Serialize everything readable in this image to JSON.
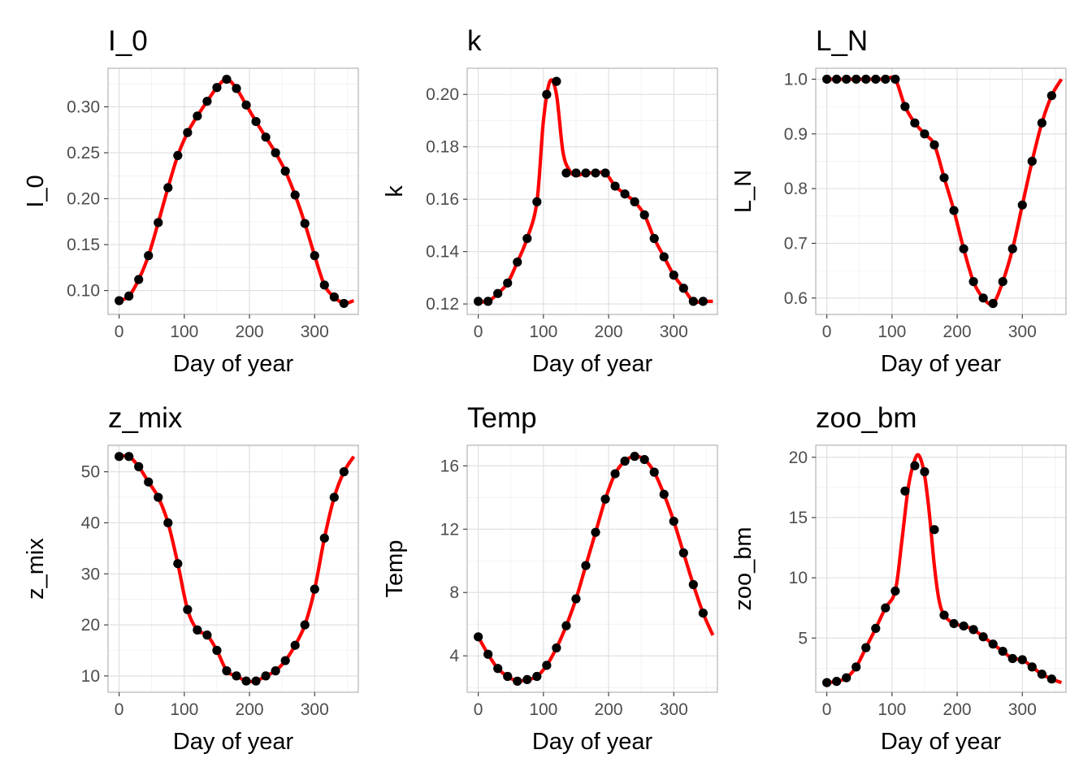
{
  "figure": {
    "colors": {
      "line": "#ff0000",
      "points": "#000000",
      "grid": "#dedede",
      "panel_border": "#b3b3b3",
      "tick_text": "#4d4d4d"
    }
  },
  "chart_data": [
    {
      "type": "line",
      "title": "I_0",
      "xlabel": "Day of year",
      "ylabel": "I_0",
      "xlim": [
        -17,
        367
      ],
      "ylim": [
        0.074,
        0.342
      ],
      "xticks": [
        0,
        100,
        200,
        300
      ],
      "yticks": [
        0.1,
        0.15,
        0.2,
        0.25,
        0.3
      ],
      "ytick_labels": [
        "0.10",
        "0.15",
        "0.20",
        "0.25",
        "0.30"
      ],
      "grid": true,
      "points": {
        "x": [
          0,
          15,
          30,
          45,
          60,
          75,
          90,
          105,
          120,
          135,
          150,
          165,
          180,
          195,
          210,
          225,
          240,
          255,
          270,
          285,
          300,
          315,
          330,
          345
        ],
        "y": [
          0.089,
          0.094,
          0.112,
          0.138,
          0.174,
          0.212,
          0.247,
          0.272,
          0.29,
          0.306,
          0.321,
          0.33,
          0.32,
          0.302,
          0.284,
          0.267,
          0.25,
          0.23,
          0.204,
          0.173,
          0.138,
          0.106,
          0.093,
          0.086
        ]
      },
      "curve": {
        "x": [
          345,
          360
        ],
        "y": [
          0.086,
          0.089
        ]
      }
    },
    {
      "type": "line",
      "title": "k",
      "xlabel": "Day of year",
      "ylabel": "k",
      "xlim": [
        -17,
        367
      ],
      "ylim": [
        0.116,
        0.21
      ],
      "xticks": [
        0,
        100,
        200,
        300
      ],
      "yticks": [
        0.12,
        0.14,
        0.16,
        0.18,
        0.2
      ],
      "ytick_labels": [
        "0.12",
        "0.14",
        "0.16",
        "0.18",
        "0.20"
      ],
      "grid": true,
      "points": {
        "x": [
          0,
          15,
          30,
          45,
          60,
          75,
          90,
          105,
          120,
          135,
          150,
          165,
          180,
          195,
          210,
          225,
          240,
          255,
          270,
          285,
          300,
          315,
          330,
          345
        ],
        "y": [
          0.121,
          0.121,
          0.124,
          0.128,
          0.136,
          0.145,
          0.159,
          0.2,
          0.205,
          0.17,
          0.17,
          0.17,
          0.17,
          0.17,
          0.165,
          0.162,
          0.159,
          0.154,
          0.145,
          0.138,
          0.131,
          0.126,
          0.121,
          0.121
        ]
      },
      "curve": {
        "x": [
          0,
          15,
          30,
          45,
          60,
          75,
          90,
          100,
          110,
          120,
          130,
          140,
          150,
          165,
          180,
          195,
          210,
          225,
          240,
          255,
          270,
          285,
          300,
          315,
          330,
          345,
          360
        ],
        "y": [
          0.121,
          0.121,
          0.124,
          0.128,
          0.136,
          0.145,
          0.159,
          0.19,
          0.205,
          0.2,
          0.178,
          0.171,
          0.169,
          0.17,
          0.17,
          0.17,
          0.165,
          0.162,
          0.159,
          0.154,
          0.145,
          0.138,
          0.131,
          0.126,
          0.121,
          0.121,
          0.121
        ]
      }
    },
    {
      "type": "line",
      "title": "L_N",
      "xlabel": "Day of year",
      "ylabel": "L_N",
      "xlim": [
        -17,
        367
      ],
      "ylim": [
        0.57,
        1.02
      ],
      "xticks": [
        0,
        100,
        200,
        300
      ],
      "yticks": [
        0.6,
        0.7,
        0.8,
        0.9,
        1.0
      ],
      "ytick_labels": [
        "0.6",
        "0.7",
        "0.8",
        "0.9",
        "1.0"
      ],
      "grid": true,
      "points": {
        "x": [
          0,
          15,
          30,
          45,
          60,
          75,
          90,
          105,
          120,
          135,
          150,
          165,
          180,
          195,
          210,
          225,
          240,
          255,
          270,
          285,
          300,
          315,
          330,
          345
        ],
        "y": [
          1.0,
          1.0,
          1.0,
          1.0,
          1.0,
          1.0,
          1.0,
          1.0,
          0.95,
          0.92,
          0.9,
          0.88,
          0.82,
          0.76,
          0.69,
          0.63,
          0.6,
          0.59,
          0.63,
          0.69,
          0.77,
          0.85,
          0.92,
          0.97
        ]
      },
      "curve": {
        "x": [
          345,
          360
        ],
        "y": [
          0.97,
          1.0
        ]
      }
    },
    {
      "type": "line",
      "title": "z_mix",
      "xlabel": "Day of year",
      "ylabel": "z_mix",
      "xlim": [
        -17,
        367
      ],
      "ylim": [
        6.8,
        55.2
      ],
      "xticks": [
        0,
        100,
        200,
        300
      ],
      "yticks": [
        10,
        20,
        30,
        40,
        50
      ],
      "ytick_labels": [
        "10",
        "20",
        "30",
        "40",
        "50"
      ],
      "grid": true,
      "points": {
        "x": [
          0,
          15,
          30,
          45,
          60,
          75,
          90,
          105,
          120,
          135,
          150,
          165,
          180,
          195,
          210,
          225,
          240,
          255,
          270,
          285,
          300,
          315,
          330,
          345
        ],
        "y": [
          53,
          53,
          51,
          48,
          45,
          40,
          32,
          23,
          19,
          18,
          15,
          11,
          10,
          9,
          9,
          10,
          11,
          13,
          16,
          20,
          27,
          37,
          45,
          50
        ]
      },
      "curve": {
        "x": [
          345,
          360
        ],
        "y": [
          50,
          53
        ]
      }
    },
    {
      "type": "line",
      "title": "Temp",
      "xlabel": "Day of year",
      "ylabel": "Temp",
      "xlim": [
        -17,
        367
      ],
      "ylim": [
        1.7,
        17.3
      ],
      "xticks": [
        0,
        100,
        200,
        300
      ],
      "yticks": [
        4,
        8,
        12,
        16
      ],
      "ytick_labels": [
        "4",
        "8",
        "12",
        "16"
      ],
      "grid": true,
      "points": {
        "x": [
          0,
          15,
          30,
          45,
          60,
          75,
          90,
          105,
          120,
          135,
          150,
          165,
          180,
          195,
          210,
          225,
          240,
          255,
          270,
          285,
          300,
          315,
          330,
          345
        ],
        "y": [
          5.2,
          4.1,
          3.2,
          2.7,
          2.4,
          2.5,
          2.7,
          3.4,
          4.5,
          5.9,
          7.6,
          9.7,
          11.8,
          13.9,
          15.5,
          16.3,
          16.6,
          16.4,
          15.6,
          14.2,
          12.5,
          10.5,
          8.5,
          6.7
        ]
      },
      "curve": {
        "x": [
          345,
          360
        ],
        "y": [
          6.7,
          5.3
        ]
      }
    },
    {
      "type": "line",
      "title": "zoo_bm",
      "xlabel": "Day of year",
      "ylabel": "zoo_bm",
      "xlim": [
        -17,
        367
      ],
      "ylim": [
        0.5,
        21.0
      ],
      "xticks": [
        0,
        100,
        200,
        300
      ],
      "yticks": [
        5,
        10,
        15,
        20
      ],
      "ytick_labels": [
        "5",
        "10",
        "15",
        "20"
      ],
      "grid": true,
      "points": {
        "x": [
          0,
          15,
          30,
          45,
          60,
          75,
          90,
          105,
          120,
          135,
          150,
          165,
          180,
          195,
          210,
          225,
          240,
          255,
          270,
          285,
          300,
          315,
          330,
          345
        ],
        "y": [
          1.3,
          1.4,
          1.7,
          2.6,
          4.2,
          5.8,
          7.5,
          8.9,
          17.2,
          19.3,
          18.8,
          14.0,
          6.9,
          6.2,
          6.0,
          5.7,
          5.1,
          4.5,
          3.9,
          3.3,
          3.2,
          2.6,
          2.0,
          1.6
        ]
      },
      "curve": {
        "x": [
          0,
          15,
          30,
          45,
          60,
          75,
          90,
          105,
          115,
          125,
          135,
          142,
          150,
          157,
          165,
          172,
          180,
          195,
          210,
          225,
          240,
          255,
          270,
          285,
          300,
          315,
          330,
          345,
          360
        ],
        "y": [
          1.3,
          1.4,
          1.7,
          2.6,
          4.2,
          5.8,
          7.5,
          8.9,
          13.0,
          17.5,
          19.8,
          20.1,
          18.5,
          15.5,
          11.0,
          8.2,
          6.9,
          6.2,
          6.0,
          5.7,
          5.1,
          4.5,
          3.9,
          3.3,
          3.2,
          2.6,
          2.0,
          1.6,
          1.3
        ]
      }
    }
  ]
}
